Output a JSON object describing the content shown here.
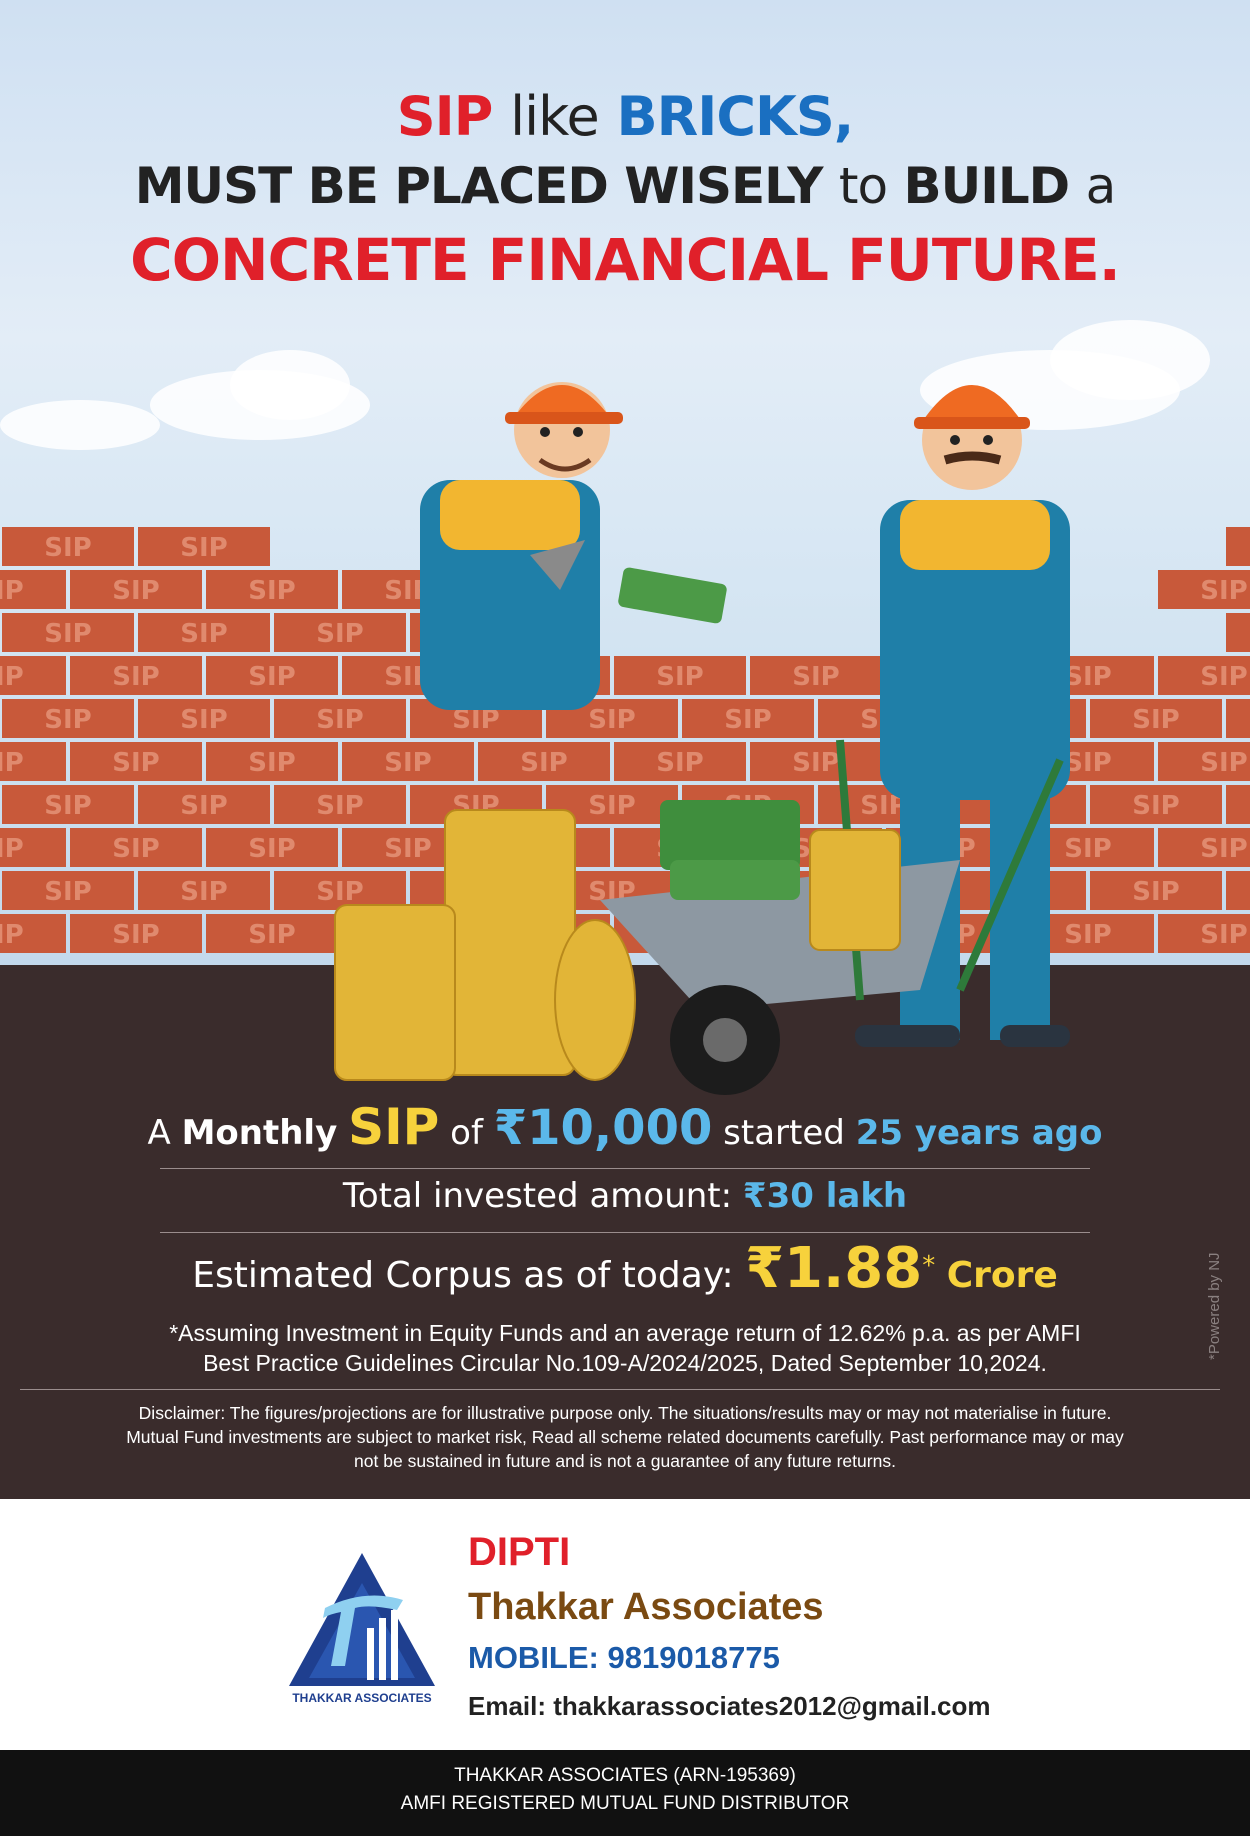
{
  "headline": {
    "l1_a": "SIP",
    "l1_b": "like",
    "l1_c": "BRICKS,",
    "l2_a": "MUST BE PLACED WISELY",
    "l2_b": "to",
    "l2_c": "BUILD",
    "l2_d": "a",
    "l3": "CONCRETE FINANCIAL FUTURE."
  },
  "brick_label": "SIP",
  "sip_line": {
    "prefix": "A",
    "monthly": "Monthly",
    "sip": "SIP",
    "of": "of",
    "amount": "₹10,000",
    "started": "started",
    "years": "25 years ago"
  },
  "invested": {
    "label": "Total invested amount:",
    "value": "₹30 lakh"
  },
  "corpus": {
    "label": "Estimated Corpus as of today:",
    "value": "₹1.88",
    "star": "*",
    "unit": "Crore"
  },
  "assumption": {
    "line1": "*Assuming Investment in Equity Funds and an average return of 12.62% p.a. as per AMFI",
    "line2": "Best Practice  Guidelines Circular No.109-A/2024/2025, Dated September 10,2024."
  },
  "disclaimer": {
    "line1": "Disclaimer: The figures/projections are for illustrative purpose only. The situations/results may or may not materialise in future.",
    "line2": "Mutual Fund investments are subject to market risk, Read all scheme related documents carefully. Past performance may or may",
    "line3": "not be sustained in future and is not a guarantee of any future returns."
  },
  "powered_by": "*Powered by NJ",
  "contact": {
    "name": "DIPTI",
    "firm": "Thakkar Associates",
    "mobile": "MOBILE: 9819018775",
    "email": "Email: thakkarassociates2012@gmail.com"
  },
  "logo_text": "THAKKAR ASSOCIATES",
  "footer": {
    "line1": "THAKKAR ASSOCIATES (ARN-195369)",
    "line2": "AMFI REGISTERED MUTUAL FUND DISTRIBUTOR"
  },
  "colors": {
    "red": "#e0202a",
    "blue": "#1a6fc1",
    "brick": "#c8593a",
    "ground": "#3a2c2c",
    "yellow": "#f7d23c",
    "light_blue": "#5bb8ea"
  }
}
